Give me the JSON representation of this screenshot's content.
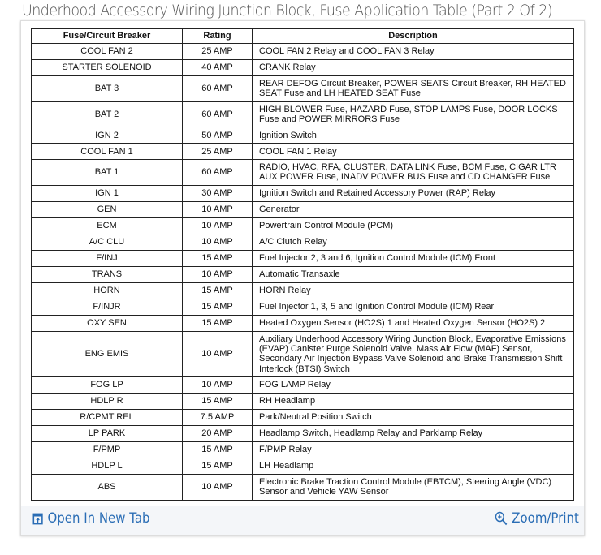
{
  "title": "Underhood Accessory Wiring Junction Block, Fuse Application Table (Part 2 Of 2)",
  "table": {
    "headers": [
      "Fuse/Circuit Breaker",
      "Rating",
      "Description"
    ],
    "rows": [
      {
        "fuse": "COOL FAN 2",
        "rating": "25 AMP",
        "desc": "COOL FAN 2 Relay and COOL FAN 3 Relay"
      },
      {
        "fuse": "STARTER SOLENOID",
        "rating": "40 AMP",
        "desc": "CRANK Relay"
      },
      {
        "fuse": "BAT 3",
        "rating": "60 AMP",
        "desc": "REAR DEFOG Circuit Breaker, POWER SEATS Circuit Breaker, RH HEATED SEAT Fuse and LH HEATED SEAT Fuse"
      },
      {
        "fuse": "BAT 2",
        "rating": "60 AMP",
        "desc": "HIGH BLOWER Fuse, HAZARD Fuse, STOP LAMPS Fuse, DOOR LOCKS Fuse and POWER MIRRORS Fuse"
      },
      {
        "fuse": "IGN 2",
        "rating": "50 AMP",
        "desc": "Ignition Switch"
      },
      {
        "fuse": "COOL FAN 1",
        "rating": "25 AMP",
        "desc": "COOL FAN 1 Relay"
      },
      {
        "fuse": "BAT 1",
        "rating": "60 AMP",
        "desc": "RADIO, HVAC, RFA, CLUSTER, DATA LINK Fuse, BCM Fuse, CIGAR LTR AUX POWER Fuse, INADV POWER BUS Fuse and CD CHANGER Fuse"
      },
      {
        "fuse": "IGN 1",
        "rating": "30 AMP",
        "desc": "Ignition Switch and Retained Accessory Power (RAP) Relay"
      },
      {
        "fuse": "GEN",
        "rating": "10 AMP",
        "desc": "Generator"
      },
      {
        "fuse": "ECM",
        "rating": "10 AMP",
        "desc": "Powertrain Control Module (PCM)"
      },
      {
        "fuse": "A/C CLU",
        "rating": "10 AMP",
        "desc": "A/C Clutch Relay"
      },
      {
        "fuse": "F/INJ",
        "rating": "15 AMP",
        "desc": "Fuel Injector 2, 3 and 6, Ignition Control Module (ICM) Front"
      },
      {
        "fuse": "TRANS",
        "rating": "10 AMP",
        "desc": "Automatic Transaxle"
      },
      {
        "fuse": "HORN",
        "rating": "15 AMP",
        "desc": "HORN Relay"
      },
      {
        "fuse": "F/INJR",
        "rating": "15 AMP",
        "desc": "Fuel Injector 1, 3, 5 and Ignition Control Module (ICM) Rear"
      },
      {
        "fuse": "OXY SEN",
        "rating": "15 AMP",
        "desc": "Heated Oxygen Sensor (HO2S) 1 and Heated Oxygen Sensor (HO2S) 2"
      },
      {
        "fuse": "ENG EMIS",
        "rating": "10 AMP",
        "desc": "Auxiliary Underhood Accessory Wiring Junction Block, Evaporative Emissions (EVAP) Canister Purge Solenoid Valve, Mass Air Flow (MAF) Sensor, Secondary Air Injection Bypass Valve Solenoid and Brake Transmission Shift Interlock (BTSI) Switch"
      },
      {
        "fuse": "FOG LP",
        "rating": "10 AMP",
        "desc": "FOG LAMP Relay"
      },
      {
        "fuse": "HDLP R",
        "rating": "15 AMP",
        "desc": "RH Headlamp"
      },
      {
        "fuse": "R/CPMT REL",
        "rating": "7.5 AMP",
        "desc": "Park/Neutral Position Switch"
      },
      {
        "fuse": "LP PARK",
        "rating": "20 AMP",
        "desc": "Headlamp Switch, Headlamp Relay and Parklamp Relay"
      },
      {
        "fuse": "F/PMP",
        "rating": "15 AMP",
        "desc": "F/PMP Relay"
      },
      {
        "fuse": "HDLP L",
        "rating": "15 AMP",
        "desc": "LH Headlamp"
      },
      {
        "fuse": "ABS",
        "rating": "10 AMP",
        "desc": "Electronic Brake Traction Control Module (EBTCM), Steering Angle (VDC) Sensor and Vehicle YAW Sensor"
      }
    ]
  },
  "footer": {
    "open_label": "Open In New Tab",
    "open_icon": "open-new-tab-icon",
    "zoom_label": "Zoom/Print",
    "zoom_icon": "zoom-in-icon",
    "link_color": "#2a6db5"
  }
}
